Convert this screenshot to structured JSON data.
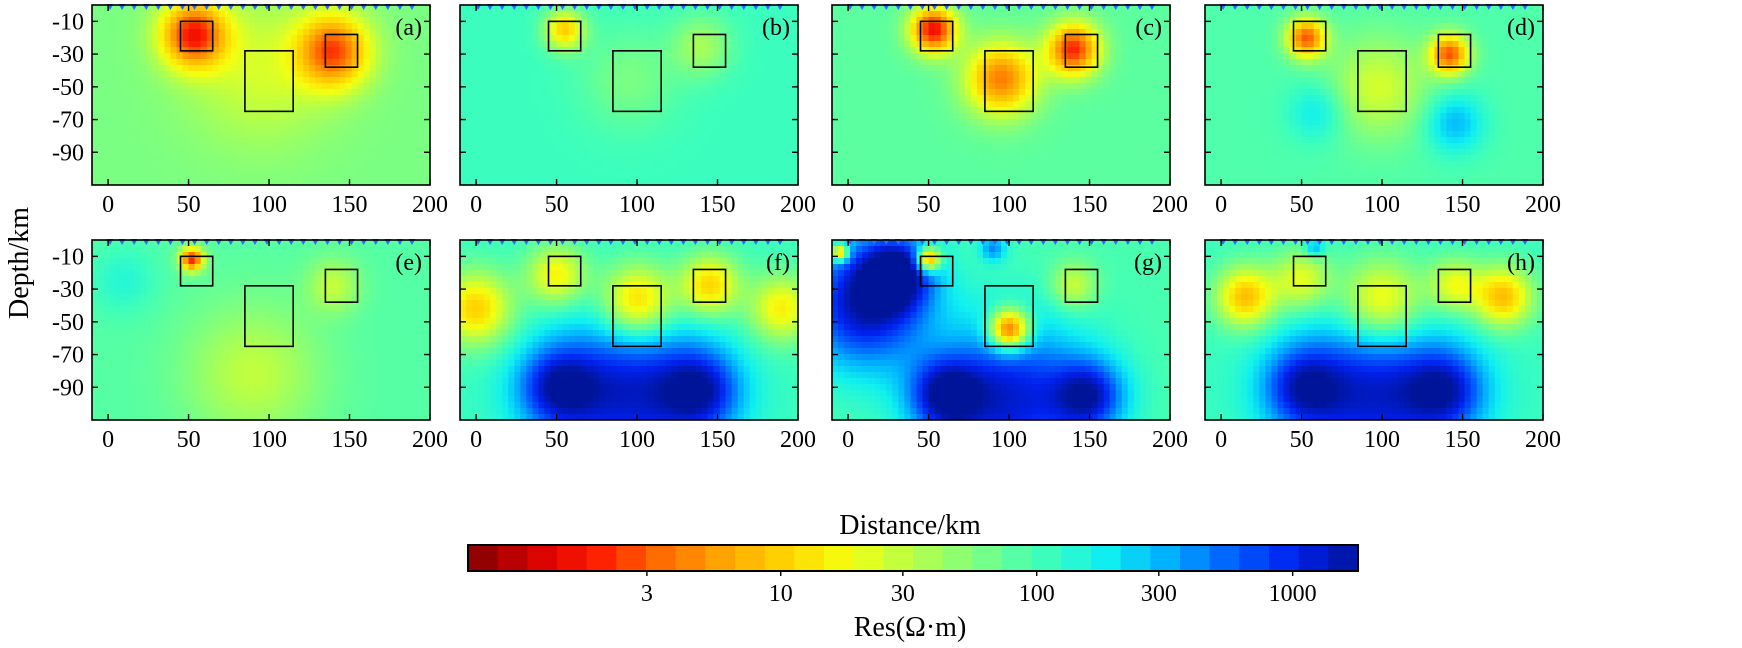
{
  "figure": {
    "ylabel": "Depth/km",
    "xlabel": "Distance/km",
    "colorbar_label": "Res(Ω·m)",
    "colorbar_ticks": [
      "3",
      "10",
      "30",
      "100",
      "300",
      "1000"
    ],
    "colorbar_tick_values": [
      3,
      10,
      30,
      100,
      300,
      1000
    ],
    "colorbar_range": [
      0.6,
      1800
    ],
    "colorbar_scale": "log",
    "colormap": [
      "#7f0000",
      "#d40000",
      "#ff1a00",
      "#ff6a00",
      "#ffa500",
      "#ffd400",
      "#f4ff10",
      "#b6ff48",
      "#7dff80",
      "#40ffb8",
      "#10f0ef",
      "#00b0ff",
      "#0060ff",
      "#0020ee",
      "#00149a"
    ]
  },
  "chart_data": [
    {
      "type": "heatmap",
      "label": "(a)",
      "xlim": [
        -10,
        200
      ],
      "ylim": [
        -110,
        0
      ],
      "xticks": [
        "0",
        "50",
        "100",
        "150",
        "200"
      ],
      "yticks": [
        "-10",
        "-30",
        "-50",
        "-70",
        "-90"
      ],
      "background": 60,
      "anomalies": [
        {
          "x": 53,
          "y": -18,
          "value": 2,
          "radius": 20
        },
        {
          "x": 140,
          "y": -28,
          "value": 3,
          "radius": 22
        },
        {
          "x": 95,
          "y": -40,
          "value": 25,
          "radius": 45
        }
      ],
      "boxes": [
        {
          "x0": 45,
          "x1": 65,
          "y0": -10,
          "y1": -28
        },
        {
          "x0": 85,
          "x1": 115,
          "y0": -28,
          "y1": -65
        },
        {
          "x0": 135,
          "x1": 155,
          "y0": -18,
          "y1": -38
        }
      ]
    },
    {
      "type": "heatmap",
      "label": "(b)",
      "xlim": [
        -10,
        200
      ],
      "ylim": [
        -110,
        0
      ],
      "xticks": [
        "0",
        "50",
        "100",
        "150",
        "200"
      ],
      "yticks": [
        "-10",
        "-30",
        "-50",
        "-70",
        "-90"
      ],
      "background": 110,
      "anomalies": [
        {
          "x": 55,
          "y": -15,
          "value": 10,
          "radius": 12
        },
        {
          "x": 140,
          "y": -25,
          "value": 40,
          "radius": 18
        },
        {
          "x": 95,
          "y": -45,
          "value": 60,
          "radius": 30
        }
      ],
      "boxes": [
        {
          "x0": 45,
          "x1": 65,
          "y0": -10,
          "y1": -28
        },
        {
          "x0": 85,
          "x1": 115,
          "y0": -28,
          "y1": -65
        },
        {
          "x0": 135,
          "x1": 155,
          "y0": -18,
          "y1": -38
        }
      ]
    },
    {
      "type": "heatmap",
      "label": "(c)",
      "xlim": [
        -10,
        200
      ],
      "ylim": [
        -110,
        0
      ],
      "xticks": [
        "0",
        "50",
        "100",
        "150",
        "200"
      ],
      "yticks": [
        "-10",
        "-30",
        "-50",
        "-70",
        "-90"
      ],
      "background": 80,
      "anomalies": [
        {
          "x": 53,
          "y": -15,
          "value": 1.5,
          "radius": 14
        },
        {
          "x": 95,
          "y": -45,
          "value": 4,
          "radius": 22
        },
        {
          "x": 140,
          "y": -27,
          "value": 2,
          "radius": 16
        }
      ],
      "boxes": [
        {
          "x0": 45,
          "x1": 65,
          "y0": -10,
          "y1": -28
        },
        {
          "x0": 85,
          "x1": 115,
          "y0": -28,
          "y1": -65
        },
        {
          "x0": 135,
          "x1": 155,
          "y0": -18,
          "y1": -38
        }
      ]
    },
    {
      "type": "heatmap",
      "label": "(d)",
      "xlim": [
        -10,
        200
      ],
      "ylim": [
        -110,
        0
      ],
      "xticks": [
        "0",
        "50",
        "100",
        "150",
        "200"
      ],
      "yticks": [
        "-10",
        "-30",
        "-50",
        "-70",
        "-90"
      ],
      "background": 90,
      "anomalies": [
        {
          "x": 53,
          "y": -20,
          "value": 3,
          "radius": 12
        },
        {
          "x": 142,
          "y": -30,
          "value": 3,
          "radius": 12
        },
        {
          "x": 98,
          "y": -50,
          "value": 25,
          "radius": 30
        },
        {
          "x": 60,
          "y": -65,
          "value": 200,
          "radius": 18
        },
        {
          "x": 145,
          "y": -72,
          "value": 300,
          "radius": 18
        }
      ],
      "boxes": [
        {
          "x0": 45,
          "x1": 65,
          "y0": -10,
          "y1": -28
        },
        {
          "x0": 85,
          "x1": 115,
          "y0": -28,
          "y1": -65
        },
        {
          "x0": 135,
          "x1": 155,
          "y0": -18,
          "y1": -38
        }
      ]
    },
    {
      "type": "heatmap",
      "label": "(e)",
      "xlim": [
        -10,
        200
      ],
      "ylim": [
        -110,
        0
      ],
      "xticks": [
        "0",
        "50",
        "100",
        "150",
        "200"
      ],
      "yticks": [
        "-10",
        "-30",
        "-50",
        "-70",
        "-90"
      ],
      "background": 85,
      "anomalies": [
        {
          "x": 52,
          "y": -12,
          "value": 2,
          "radius": 7
        },
        {
          "x": 140,
          "y": -28,
          "value": 30,
          "radius": 16
        },
        {
          "x": 90,
          "y": -82,
          "value": 30,
          "radius": 42
        },
        {
          "x": 10,
          "y": -25,
          "value": 140,
          "radius": 20
        }
      ],
      "boxes": [
        {
          "x0": 45,
          "x1": 65,
          "y0": -10,
          "y1": -28
        },
        {
          "x0": 85,
          "x1": 115,
          "y0": -28,
          "y1": -65
        },
        {
          "x0": 135,
          "x1": 155,
          "y0": -18,
          "y1": -38
        }
      ]
    },
    {
      "type": "heatmap",
      "label": "(f)",
      "xlim": [
        -10,
        200
      ],
      "ylim": [
        -110,
        0
      ],
      "xticks": [
        "0",
        "50",
        "100",
        "150",
        "200"
      ],
      "yticks": [
        "-10",
        "-30",
        "-50",
        "-70",
        "-90"
      ],
      "background": 110,
      "anomalies": [
        {
          "x": 95,
          "y": -95,
          "value": 1200,
          "radius": 48
        },
        {
          "x": 50,
          "y": -90,
          "value": 900,
          "radius": 25
        },
        {
          "x": 140,
          "y": -92,
          "value": 900,
          "radius": 25
        },
        {
          "x": 0,
          "y": -42,
          "value": 10,
          "radius": 22
        },
        {
          "x": 50,
          "y": -22,
          "value": 15,
          "radius": 18
        },
        {
          "x": 100,
          "y": -38,
          "value": 8,
          "radius": 22
        },
        {
          "x": 145,
          "y": -28,
          "value": 10,
          "radius": 18
        },
        {
          "x": 190,
          "y": -42,
          "value": 15,
          "radius": 20
        }
      ],
      "boxes": [
        {
          "x0": 45,
          "x1": 65,
          "y0": -10,
          "y1": -28
        },
        {
          "x0": 85,
          "x1": 115,
          "y0": -28,
          "y1": -65
        },
        {
          "x0": 135,
          "x1": 155,
          "y0": -18,
          "y1": -38
        }
      ]
    },
    {
      "type": "heatmap",
      "label": "(g)",
      "xlim": [
        -10,
        200
      ],
      "ylim": [
        -110,
        0
      ],
      "xticks": [
        "0",
        "50",
        "100",
        "150",
        "200"
      ],
      "yticks": [
        "-10",
        "-30",
        "-50",
        "-70",
        "-90"
      ],
      "background": 95,
      "anomalies": [
        {
          "x": 10,
          "y": -40,
          "value": 1500,
          "radius": 38
        },
        {
          "x": 30,
          "y": -20,
          "value": 1200,
          "radius": 22
        },
        {
          "x": 100,
          "y": -98,
          "value": 1200,
          "radius": 48
        },
        {
          "x": 60,
          "y": -95,
          "value": 900,
          "radius": 22
        },
        {
          "x": 150,
          "y": -95,
          "value": 900,
          "radius": 22
        },
        {
          "x": 100,
          "y": -55,
          "value": 1.5,
          "radius": 12
        },
        {
          "x": 50,
          "y": -12,
          "value": 2,
          "radius": 7
        },
        {
          "x": -5,
          "y": -8,
          "value": 3,
          "radius": 5
        },
        {
          "x": 90,
          "y": -5,
          "value": 400,
          "radius": 8
        },
        {
          "x": 140,
          "y": -28,
          "value": 25,
          "radius": 14
        }
      ],
      "boxes": [
        {
          "x0": 45,
          "x1": 65,
          "y0": -10,
          "y1": -28
        },
        {
          "x0": 85,
          "x1": 115,
          "y0": -28,
          "y1": -65
        },
        {
          "x0": 135,
          "x1": 155,
          "y0": -18,
          "y1": -38
        }
      ]
    },
    {
      "type": "heatmap",
      "label": "(h)",
      "xlim": [
        -10,
        200
      ],
      "ylim": [
        -110,
        0
      ],
      "xticks": [
        "0",
        "50",
        "100",
        "150",
        "200"
      ],
      "yticks": [
        "-10",
        "-30",
        "-50",
        "-70",
        "-90"
      ],
      "background": 110,
      "anomalies": [
        {
          "x": 95,
          "y": -95,
          "value": 1200,
          "radius": 48
        },
        {
          "x": 50,
          "y": -90,
          "value": 800,
          "radius": 25
        },
        {
          "x": 140,
          "y": -92,
          "value": 800,
          "radius": 25
        },
        {
          "x": 15,
          "y": -35,
          "value": 8,
          "radius": 18
        },
        {
          "x": 175,
          "y": -35,
          "value": 8,
          "radius": 18
        },
        {
          "x": 100,
          "y": -38,
          "value": 12,
          "radius": 25
        },
        {
          "x": 50,
          "y": -25,
          "value": 20,
          "radius": 18
        },
        {
          "x": 145,
          "y": -28,
          "value": 20,
          "radius": 16
        },
        {
          "x": 58,
          "y": -5,
          "value": 400,
          "radius": 6
        }
      ],
      "boxes": [
        {
          "x0": 45,
          "x1": 65,
          "y0": -10,
          "y1": -28
        },
        {
          "x0": 85,
          "x1": 115,
          "y0": -28,
          "y1": -65
        },
        {
          "x0": 135,
          "x1": 155,
          "y0": -18,
          "y1": -38
        }
      ]
    }
  ]
}
